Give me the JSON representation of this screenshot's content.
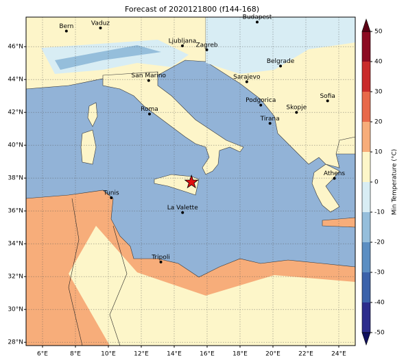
{
  "map": {
    "title": "Forecast of 2020121800 (f144-168)",
    "xlim": [
      5,
      25
    ],
    "ylim": [
      27.8,
      47.8
    ],
    "xticks": [
      {
        "value": 6,
        "label": "6°E"
      },
      {
        "value": 8,
        "label": "8°E"
      },
      {
        "value": 10,
        "label": "10°E"
      },
      {
        "value": 12,
        "label": "12°E"
      },
      {
        "value": 14,
        "label": "14°E"
      },
      {
        "value": 16,
        "label": "16°E"
      },
      {
        "value": 18,
        "label": "18°E"
      },
      {
        "value": 20,
        "label": "20°E"
      },
      {
        "value": 22,
        "label": "22°E"
      },
      {
        "value": 24,
        "label": "24°E"
      }
    ],
    "yticks": [
      {
        "value": 28,
        "label": "28°N"
      },
      {
        "value": 30,
        "label": "30°N"
      },
      {
        "value": 32,
        "label": "32°N"
      },
      {
        "value": 34,
        "label": "34°N"
      },
      {
        "value": 36,
        "label": "36°N"
      },
      {
        "value": 38,
        "label": "38°N"
      },
      {
        "value": 40,
        "label": "40°N"
      },
      {
        "value": 42,
        "label": "42°N"
      },
      {
        "value": 44,
        "label": "44°N"
      },
      {
        "value": 46,
        "label": "46°N"
      }
    ],
    "grid": true,
    "cities": [
      {
        "name": "Bern",
        "lon": 7.45,
        "lat": 46.95
      },
      {
        "name": "Vaduz",
        "lon": 9.52,
        "lat": 47.14
      },
      {
        "name": "Budapest",
        "lon": 19.04,
        "lat": 47.5
      },
      {
        "name": "Ljubljana",
        "lon": 14.5,
        "lat": 46.05
      },
      {
        "name": "Zagreb",
        "lon": 15.98,
        "lat": 45.81
      },
      {
        "name": "Belgrade",
        "lon": 20.46,
        "lat": 44.82
      },
      {
        "name": "San Marino",
        "lon": 12.45,
        "lat": 43.94
      },
      {
        "name": "Sarajevo",
        "lon": 18.41,
        "lat": 43.86
      },
      {
        "name": "Sofia",
        "lon": 23.32,
        "lat": 42.7
      },
      {
        "name": "Podgorica",
        "lon": 19.26,
        "lat": 42.44
      },
      {
        "name": "Skopje",
        "lon": 21.43,
        "lat": 42.0
      },
      {
        "name": "Roma",
        "lon": 12.5,
        "lat": 41.9
      },
      {
        "name": "Tirana",
        "lon": 19.82,
        "lat": 41.33
      },
      {
        "name": "Athens",
        "lon": 23.73,
        "lat": 37.98
      },
      {
        "name": "Tunis",
        "lon": 10.18,
        "lat": 36.8
      },
      {
        "name": "La Valette",
        "lon": 14.51,
        "lat": 35.9
      },
      {
        "name": "Tripoli",
        "lon": 13.19,
        "lat": 32.89
      }
    ],
    "event": {
      "lon": 15.05,
      "lat": 37.75,
      "color": "#e01010"
    }
  },
  "colorbar": {
    "label": "Min Temperature (°C)",
    "ticks": [
      -50,
      -40,
      -30,
      -20,
      -10,
      0,
      10,
      20,
      30,
      40,
      50
    ],
    "colors": [
      "#2c2c8c",
      "#3b62aa",
      "#5b8ec2",
      "#95bedb",
      "#d8edf4",
      "#fdf6c9",
      "#f7ad7a",
      "#e8694a",
      "#c92b2b",
      "#8c0b22"
    ],
    "under_color": "#10105e",
    "over_color": "#5c0015"
  }
}
